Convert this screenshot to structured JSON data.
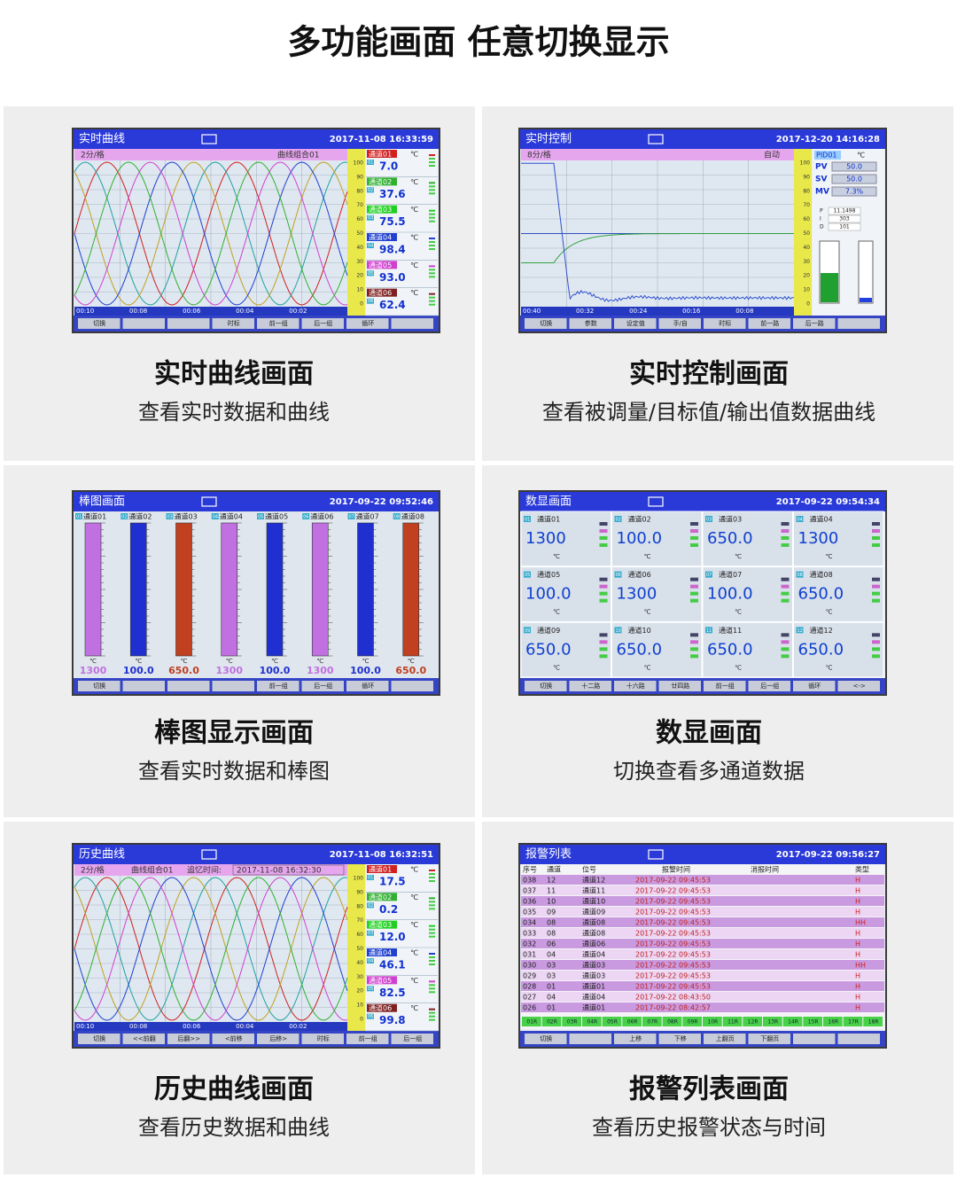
{
  "header": {
    "title": "多功能画面  任意切换显示"
  },
  "panels": [
    {
      "caption": "实时曲线画面",
      "description": "查看实时数据和曲线",
      "screen": {
        "type": "curve",
        "title": "实时曲线",
        "datetime": "2017-11-08 16:33:59",
        "interval": "2分/格",
        "group": "曲线组合01",
        "scale": [
          "100",
          "90",
          "80",
          "70",
          "60",
          "50",
          "40",
          "30",
          "20",
          "10",
          "0"
        ],
        "times": [
          "00:10",
          "00:08",
          "00:06",
          "00:04",
          "00:02"
        ],
        "channels": [
          {
            "id": "01",
            "name": "通道01",
            "value": "7.0",
            "unit": "℃",
            "color": "#d02020"
          },
          {
            "id": "02",
            "name": "通道02",
            "value": "37.6",
            "unit": "℃",
            "color": "#30b030"
          },
          {
            "id": "03",
            "name": "通道03",
            "value": "75.5",
            "unit": "℃",
            "color": "#20d020"
          },
          {
            "id": "04",
            "name": "通道04",
            "value": "98.4",
            "unit": "℃",
            "color": "#2040d0"
          },
          {
            "id": "05",
            "name": "通道05",
            "value": "93.0",
            "unit": "℃",
            "color": "#d040d0"
          },
          {
            "id": "06",
            "name": "通道06",
            "value": "62.4",
            "unit": "℃",
            "color": "#802020"
          }
        ],
        "buttons": [
          "切换",
          null,
          null,
          "时标",
          "前一组",
          "后一组",
          "循环",
          null
        ]
      }
    },
    {
      "caption": "实时控制画面",
      "description": "查看被调量/目标值/输出值数据曲线",
      "screen": {
        "type": "control",
        "title": "实时控制",
        "datetime": "2017-12-20 14:16:28",
        "interval": "8分/格",
        "mode": "自动",
        "scale": [
          "100",
          "90",
          "80",
          "70",
          "60",
          "50",
          "40",
          "30",
          "20",
          "10",
          "0"
        ],
        "times": [
          "00:40",
          "00:32",
          "00:24",
          "00:16",
          "00:08"
        ],
        "loop": "PID01",
        "unit": "℃",
        "pv_label": "PV",
        "pv": "50.0",
        "sv_label": "SV",
        "sv": "50.0",
        "mv_label": "MV",
        "mv": "7.3%",
        "pid": [
          [
            "P",
            "11.1498"
          ],
          [
            "I",
            "303"
          ],
          [
            "D",
            "101"
          ]
        ],
        "buttons": [
          "切换",
          "参数",
          "设定值",
          "手/自",
          "时标",
          "前一路",
          "后一路",
          null
        ]
      }
    },
    {
      "caption": "棒图显示画面",
      "description": "查看实时数据和棒图",
      "screen": {
        "type": "bars",
        "title": "棒图画面",
        "datetime": "2017-09-22 09:52:46",
        "channels": [
          {
            "id": "01",
            "name": "通道01",
            "value": "1300",
            "unit": "℃",
            "color": "#c070e0"
          },
          {
            "id": "02",
            "name": "通道02",
            "value": "100.0",
            "unit": "℃",
            "color": "#2030d0"
          },
          {
            "id": "03",
            "name": "通道03",
            "value": "650.0",
            "unit": "℃",
            "color": "#c04020"
          },
          {
            "id": "04",
            "name": "通道04",
            "value": "1300",
            "unit": "℃",
            "color": "#c070e0"
          },
          {
            "id": "05",
            "name": "通道05",
            "value": "100.0",
            "unit": "℃",
            "color": "#2030d0"
          },
          {
            "id": "06",
            "name": "通道06",
            "value": "1300",
            "unit": "℃",
            "color": "#c070e0"
          },
          {
            "id": "07",
            "name": "通道07",
            "value": "100.0",
            "unit": "℃",
            "color": "#2030d0"
          },
          {
            "id": "08",
            "name": "通道08",
            "value": "650.0",
            "unit": "℃",
            "color": "#c04020"
          }
        ],
        "buttons": [
          "切换",
          null,
          null,
          null,
          "前一组",
          "后一组",
          "循环",
          null
        ]
      }
    },
    {
      "caption": "数显画面",
      "description": "切换查看多通道数据",
      "screen": {
        "type": "digital",
        "title": "数显画面",
        "datetime": "2017-09-22 09:54:34",
        "channels": [
          {
            "id": "01",
            "name": "通道01",
            "value": "1300",
            "unit": "℃"
          },
          {
            "id": "02",
            "name": "通道02",
            "value": "100.0",
            "unit": "℃"
          },
          {
            "id": "03",
            "name": "通道03",
            "value": "650.0",
            "unit": "℃"
          },
          {
            "id": "04",
            "name": "通道04",
            "value": "1300",
            "unit": "℃"
          },
          {
            "id": "05",
            "name": "通道05",
            "value": "100.0",
            "unit": "℃"
          },
          {
            "id": "06",
            "name": "通道06",
            "value": "1300",
            "unit": "℃"
          },
          {
            "id": "07",
            "name": "通道07",
            "value": "100.0",
            "unit": "℃"
          },
          {
            "id": "08",
            "name": "通道08",
            "value": "650.0",
            "unit": "℃"
          },
          {
            "id": "09",
            "name": "通道09",
            "value": "650.0",
            "unit": "℃"
          },
          {
            "id": "10",
            "name": "通道10",
            "value": "650.0",
            "unit": "℃"
          },
          {
            "id": "11",
            "name": "通道11",
            "value": "650.0",
            "unit": "℃"
          },
          {
            "id": "12",
            "name": "通道12",
            "value": "650.0",
            "unit": "℃"
          }
        ],
        "buttons": [
          "切换",
          "十二路",
          "十六路",
          "廿四路",
          "前一组",
          "后一组",
          "循环",
          "<->"
        ]
      }
    },
    {
      "caption": "历史曲线画面",
      "description": "查看历史数据和曲线",
      "screen": {
        "type": "curve",
        "title": "历史曲线",
        "datetime": "2017-11-08 16:32:51",
        "interval": "2分/格",
        "group": "曲线组合01",
        "recall_label": "追忆时间:",
        "recall_time": "2017-11-08 16:32:30",
        "scale": [
          "100",
          "90",
          "80",
          "70",
          "60",
          "50",
          "40",
          "30",
          "20",
          "10",
          "0"
        ],
        "times": [
          "00:10",
          "00:08",
          "00:06",
          "00:04",
          "00:02"
        ],
        "channels": [
          {
            "id": "01",
            "name": "通道01",
            "value": "17.5",
            "unit": "℃",
            "color": "#d02020"
          },
          {
            "id": "02",
            "name": "通道02",
            "value": "0.2",
            "unit": "℃",
            "color": "#30b030"
          },
          {
            "id": "03",
            "name": "通道03",
            "value": "12.0",
            "unit": "℃",
            "color": "#20d020"
          },
          {
            "id": "04",
            "name": "通道04",
            "value": "46.1",
            "unit": "℃",
            "color": "#2040d0"
          },
          {
            "id": "05",
            "name": "通道05",
            "value": "82.5",
            "unit": "℃",
            "color": "#d040d0"
          },
          {
            "id": "06",
            "name": "通道06",
            "value": "99.8",
            "unit": "℃",
            "color": "#802020"
          }
        ],
        "buttons": [
          "切换",
          "<<前翻",
          "后翻>>",
          "<前移",
          "后移>",
          "时标",
          "前一组",
          "后一组"
        ]
      }
    },
    {
      "caption": "报警列表画面",
      "description": "查看历史报警状态与时间",
      "screen": {
        "type": "alarm",
        "title": "报警列表",
        "datetime": "2017-09-22 09:56:27",
        "columns": [
          "序号",
          "通道",
          "位号",
          "报警时间",
          "消报时间",
          "类型"
        ],
        "rows": [
          [
            "038",
            "12",
            "通道12",
            "2017-09-22 09:45:53",
            "H"
          ],
          [
            "037",
            "11",
            "通道11",
            "2017-09-22 09:45:53",
            "H"
          ],
          [
            "036",
            "10",
            "通道10",
            "2017-09-22 09:45:53",
            "H"
          ],
          [
            "035",
            "09",
            "通道09",
            "2017-09-22 09:45:53",
            "H"
          ],
          [
            "034",
            "08",
            "通道08",
            "2017-09-22 09:45:53",
            "HH"
          ],
          [
            "033",
            "08",
            "通道08",
            "2017-09-22 09:45:53",
            "H"
          ],
          [
            "032",
            "06",
            "通道06",
            "2017-09-22 09:45:53",
            "H"
          ],
          [
            "031",
            "04",
            "通道04",
            "2017-09-22 09:45:53",
            "H"
          ],
          [
            "030",
            "03",
            "通道03",
            "2017-09-22 09:45:53",
            "HH"
          ],
          [
            "029",
            "03",
            "通道03",
            "2017-09-22 09:45:53",
            "H"
          ],
          [
            "028",
            "01",
            "通道01",
            "2017-09-22 09:45:53",
            "H"
          ],
          [
            "027",
            "04",
            "通道04",
            "2017-09-22 08:43:50",
            "H"
          ],
          [
            "026",
            "01",
            "通道01",
            "2017-09-22 08:42:57",
            "H"
          ]
        ],
        "flags": [
          "01R",
          "02R",
          "03R",
          "04R",
          "05R",
          "06R",
          "07R",
          "08R",
          "09R",
          "10R",
          "11R",
          "12R",
          "13R",
          "14R",
          "15R",
          "16R",
          "17R",
          "18R"
        ],
        "buttons": [
          "切换",
          null,
          "上移",
          "下移",
          "上翻页",
          "下翻页",
          null,
          null
        ]
      }
    }
  ]
}
